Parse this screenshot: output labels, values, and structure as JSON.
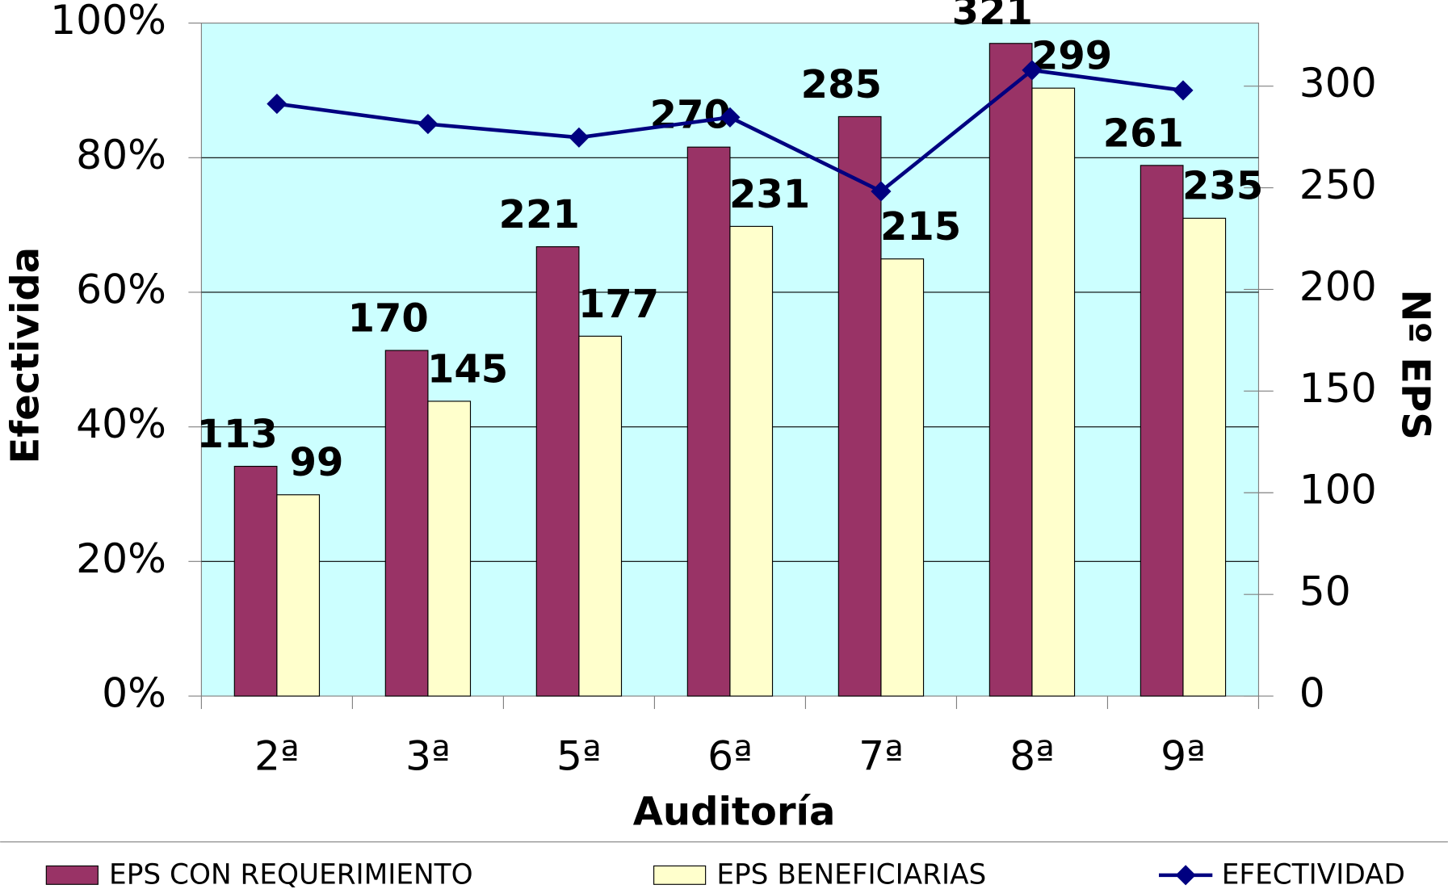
{
  "chart_data": {
    "type": "bar_line",
    "xlabel": "Auditoría",
    "ylabel": "Efectivida",
    "y2label": "Nº EPS",
    "categories": [
      "2ª",
      "3ª",
      "5ª",
      "6ª",
      "7ª",
      "8ª",
      "9ª"
    ],
    "series": [
      {
        "name": "EPS CON REQUERIMIENTO",
        "color": "#993366",
        "axis": "y2",
        "type": "bar",
        "values": [
          113,
          170,
          221,
          270,
          285,
          321,
          261
        ]
      },
      {
        "name": "EPS BENEFICIARIAS",
        "color": "#FFFFCC",
        "axis": "y2",
        "type": "bar",
        "values": [
          99,
          145,
          177,
          231,
          215,
          299,
          235
        ]
      },
      {
        "name": "EFECTIVIDAD",
        "color": "#000080",
        "type": "line",
        "values": [
          88,
          85,
          83,
          86,
          75,
          93,
          90
        ]
      }
    ],
    "ylim": [
      0,
      100
    ],
    "yticks": [
      {
        "value": 0,
        "label": "0%"
      },
      {
        "value": 20,
        "label": "20%"
      },
      {
        "value": 40,
        "label": "40%"
      },
      {
        "value": 60,
        "label": "60%"
      },
      {
        "value": 80,
        "label": "80%"
      },
      {
        "value": 100,
        "label": "100%"
      }
    ],
    "y2lim": [
      0,
      331
    ],
    "y2ticks": [
      0,
      50,
      100,
      150,
      200,
      250,
      300
    ],
    "grid": true,
    "plot_background": "#CCFFFF",
    "legend": "bottom"
  }
}
